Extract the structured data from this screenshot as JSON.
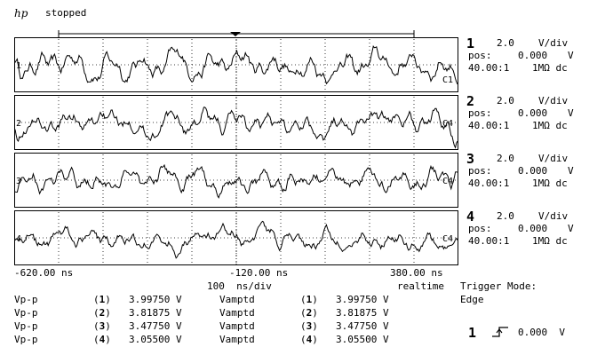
{
  "header": {
    "logo": "hp",
    "status": "stopped"
  },
  "channels": [
    {
      "num": "1",
      "scale": "2.0",
      "unit": "V/div",
      "pos_label": "pos:",
      "pos": "0.000",
      "pos_unit": "V",
      "probe": "40.00:1",
      "coupling": "1MΩ dc",
      "trace_label": "C1",
      "ref": "1"
    },
    {
      "num": "2",
      "scale": "2.0",
      "unit": "V/div",
      "pos_label": "pos:",
      "pos": "0.000",
      "pos_unit": "V",
      "probe": "40.00:1",
      "coupling": "1MΩ dc",
      "trace_label": "C4",
      "ref": "2"
    },
    {
      "num": "3",
      "scale": "2.0",
      "unit": "V/div",
      "pos_label": "pos:",
      "pos": "0.000",
      "pos_unit": "V",
      "probe": "40.00:1",
      "coupling": "1MΩ dc",
      "trace_label": "C4",
      "ref": "3"
    },
    {
      "num": "4",
      "scale": "2.0",
      "unit": "V/div",
      "pos_label": "pos:",
      "pos": "0.000",
      "pos_unit": "V",
      "probe": "40.00:1",
      "coupling": "1MΩ dc",
      "trace_label": "C4",
      "ref": "4"
    }
  ],
  "timebase": {
    "left": "-620.00 ns",
    "center": "-120.00 ns",
    "right": "380.00 ns",
    "scale": "100  ns/div",
    "mode": "realtime"
  },
  "trigger": {
    "label": "Trigger Mode:",
    "mode": "Edge",
    "source": "1",
    "level": "0.000  V"
  },
  "measurements": [
    {
      "name": "Vp-p",
      "ch": "1",
      "value": "3.99750 V",
      "name2": "Vamptd",
      "ch2": "1",
      "value2": "3.99750 V"
    },
    {
      "name": "Vp-p",
      "ch": "2",
      "value": "3.81875 V",
      "name2": "Vamptd",
      "ch2": "2",
      "value2": "3.81875 V"
    },
    {
      "name": "Vp-p",
      "ch": "3",
      "value": "3.47750 V",
      "name2": "Vamptd",
      "ch2": "3",
      "value2": "3.47750 V"
    },
    {
      "name": "Vp-p",
      "ch": "4",
      "value": "3.05500 V",
      "name2": "Vamptd",
      "ch2": "4",
      "value2": "3.05500 V"
    }
  ]
}
